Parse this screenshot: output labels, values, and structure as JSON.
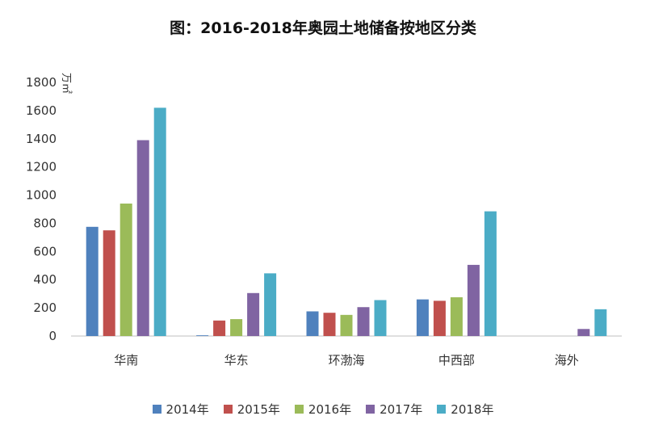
{
  "chart_data": {
    "type": "bar",
    "title": "图：2016-2018年奥园土地储备按地区分类",
    "ylabel": "万㎡",
    "xlabel": "",
    "ylim": [
      0,
      1800
    ],
    "yticks": [
      0,
      200,
      400,
      600,
      800,
      1000,
      1200,
      1400,
      1600,
      1800
    ],
    "categories": [
      "华南",
      "华东",
      "环渤海",
      "中西部",
      "海外"
    ],
    "series": [
      {
        "name": "2014年",
        "color": "#4f81bd",
        "values": [
          775,
          5,
          175,
          260,
          0
        ]
      },
      {
        "name": "2015年",
        "color": "#c0504d",
        "values": [
          750,
          110,
          165,
          250,
          0
        ]
      },
      {
        "name": "2016年",
        "color": "#9bbb59",
        "values": [
          940,
          120,
          150,
          275,
          0
        ]
      },
      {
        "name": "2017年",
        "color": "#8064a2",
        "values": [
          1390,
          305,
          205,
          505,
          50
        ]
      },
      {
        "name": "2018年",
        "color": "#4bacc6",
        "values": [
          1620,
          445,
          255,
          885,
          190
        ]
      }
    ],
    "grid": false,
    "legend": "bottom"
  }
}
